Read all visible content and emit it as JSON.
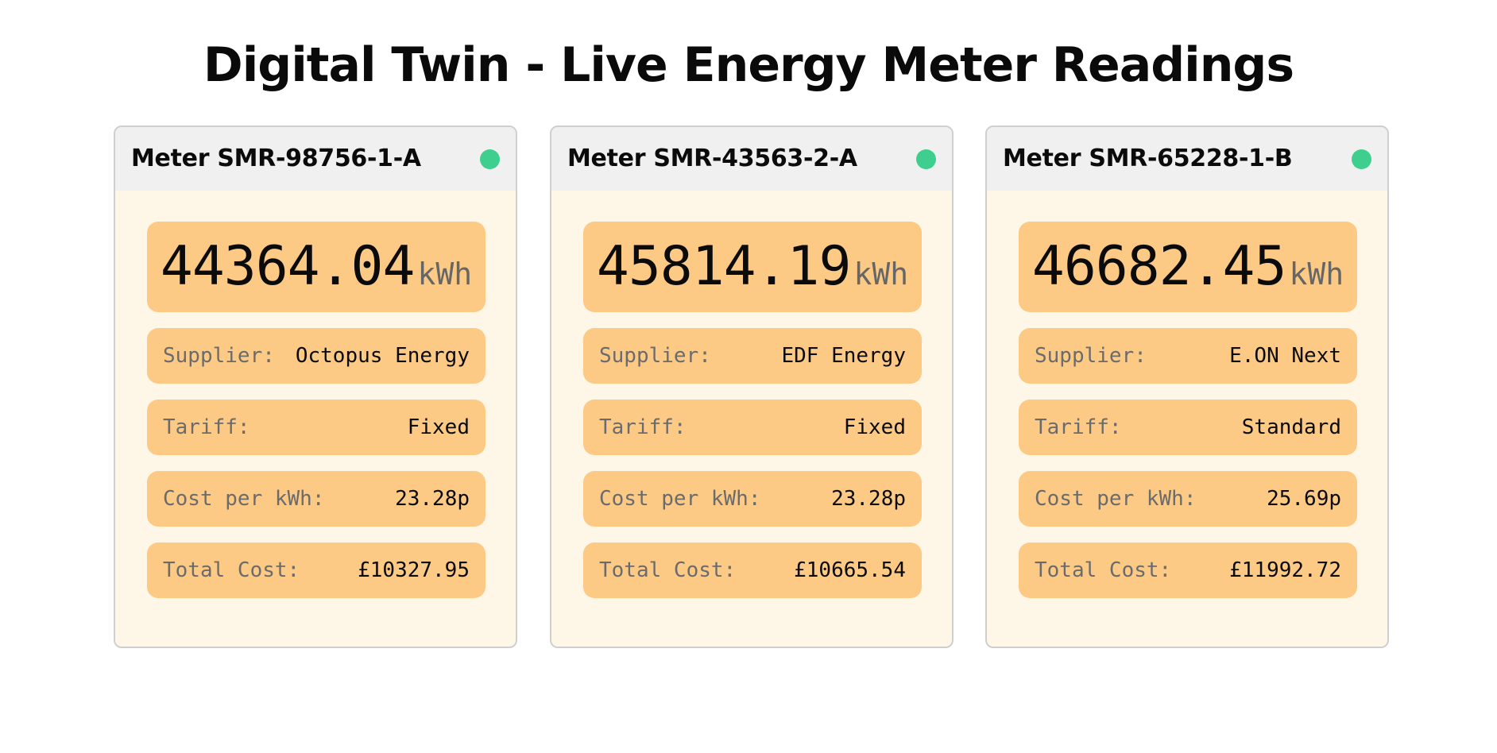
{
  "page": {
    "title": "Digital Twin - Live Energy Meter Readings"
  },
  "colors": {
    "card_background": "#fef6e6",
    "header_background": "#f0f0f0",
    "field_background": "#fdca86",
    "status_online": "#3ecf8e"
  },
  "meters": [
    {
      "name": "Meter SMR-98756-1-A",
      "status_icon": "status-online-icon",
      "reading": "44364.04",
      "unit": "kWh",
      "supplier_label": "Supplier:",
      "supplier": "Octopus Energy",
      "tariff_label": "Tariff:",
      "tariff": "Fixed",
      "cost_label": "Cost per kWh:",
      "cost_per_kwh": "23.28p",
      "total_label": "Total Cost:",
      "total_cost": "£10327.95"
    },
    {
      "name": "Meter SMR-43563-2-A",
      "status_icon": "status-online-icon",
      "reading": "45814.19",
      "unit": "kWh",
      "supplier_label": "Supplier:",
      "supplier": "EDF Energy",
      "tariff_label": "Tariff:",
      "tariff": "Fixed",
      "cost_label": "Cost per kWh:",
      "cost_per_kwh": "23.28p",
      "total_label": "Total Cost:",
      "total_cost": "£10665.54"
    },
    {
      "name": "Meter SMR-65228-1-B",
      "status_icon": "status-online-icon",
      "reading": "46682.45",
      "unit": "kWh",
      "supplier_label": "Supplier:",
      "supplier": "E.ON Next",
      "tariff_label": "Tariff:",
      "tariff": "Standard",
      "cost_label": "Cost per kWh:",
      "cost_per_kwh": "25.69p",
      "total_label": "Total Cost:",
      "total_cost": "£11992.72"
    }
  ]
}
